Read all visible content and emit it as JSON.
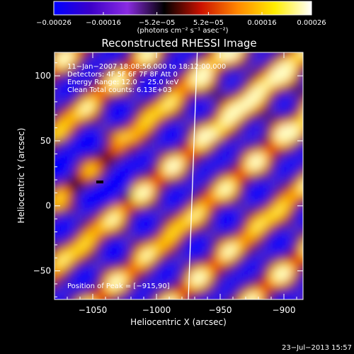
{
  "chart_data": {
    "type": "heatmap",
    "title": "Reconstructed RHESSI Image",
    "xlabel": "Heliocentric X (arcsec)",
    "ylabel": "Heliocentric Y (arcsec)",
    "xlim": [
      -1080,
      -885
    ],
    "ylim": [
      -72,
      118
    ],
    "x_ticks": [
      -1050,
      -1000,
      -950,
      -900
    ],
    "x_tick_labels": [
      "−1050",
      "−1000",
      "−950",
      "−900"
    ],
    "y_ticks": [
      100,
      50,
      0,
      -50
    ],
    "y_tick_labels": [
      "100",
      "50",
      "0",
      "−50"
    ],
    "colorbar": {
      "range": [
        -0.00026,
        0.00026
      ],
      "ticks": [
        -0.00026,
        -0.00016,
        -5.2e-05,
        5.2e-05,
        0.00016,
        0.00026
      ],
      "tick_labels": [
        "−0.00026",
        "−0.00016",
        "−5.2e−05",
        "5.2e−05",
        "0.00016",
        "0.00026"
      ],
      "units_label": "(photons cm⁻² s⁻¹ asec⁻²)",
      "colors": [
        "#0000ff",
        "#3c00c8",
        "#8a2be2",
        "#000000",
        "#cc1100",
        "#ff8800",
        "#ffee00",
        "#ffffff"
      ]
    },
    "annotations": [
      "11−Jan−2007 18:08:56.000 to 18:12:00.000",
      "Detectors: 4F 5F 6F 7F 8F  Att 0",
      "Energy Range: 12.0 − 25.0 keV",
      "Clean    Total counts: 6.13E+03"
    ],
    "peak_label": "Position of Peak = [−915,90]",
    "peak_position": [
      -915,
      90
    ],
    "limb_line": {
      "x_top": -968,
      "x_bottom": -975
    }
  },
  "footer": {
    "timestamp": "23−Jul−2013 15:57"
  }
}
